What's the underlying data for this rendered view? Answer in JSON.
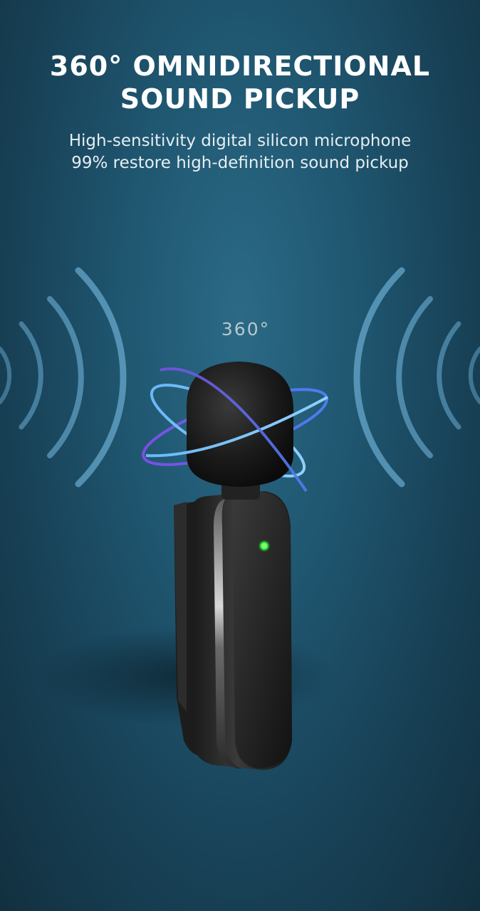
{
  "headline": {
    "line1": "360° OMNIDIRECTIONAL",
    "line2": "SOUND PICKUP"
  },
  "subtitle": {
    "line1": "High-sensitivity digital silicon microphone",
    "line2": "99% restore high-definition sound pickup"
  },
  "badge": "360°",
  "colors": {
    "background": "#1f5670",
    "wave": "#7fc6ef",
    "orbit_purple": "#6c4fd8",
    "orbit_blue": "#5fb0f0",
    "led": "#3cff3c"
  },
  "icons": [
    "sound-wave-left-icon",
    "sound-wave-right-icon",
    "orbit-ring-icon"
  ]
}
